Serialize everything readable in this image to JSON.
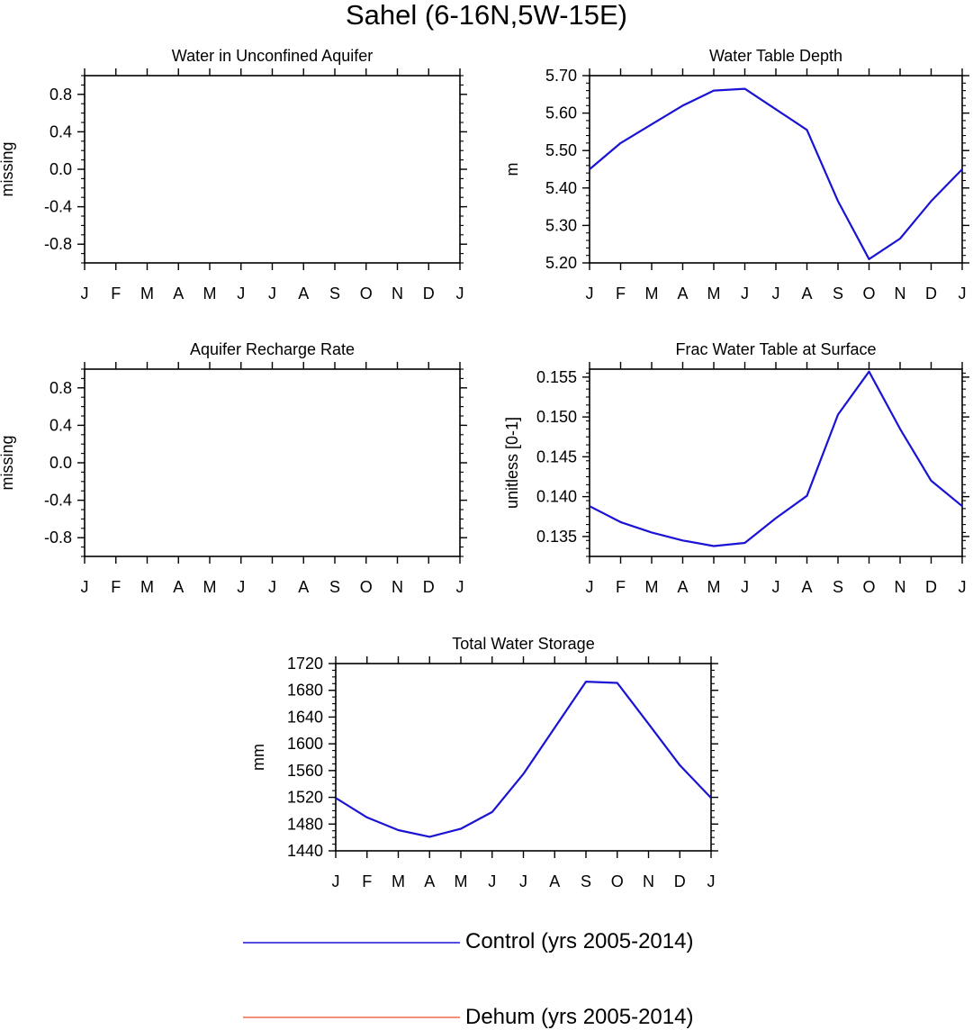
{
  "title": "Sahel (6-16N,5W-15E)",
  "legend": [
    {
      "label": "Control (yrs 2005-2014)",
      "color": "#1a13d3"
    },
    {
      "label": "Dehum (yrs 2005-2014)",
      "color": "#f26b55"
    }
  ],
  "chart_data": [
    {
      "type": "line",
      "title": "Water in Unconfined Aquifer",
      "ylabel": "missing",
      "categories": [
        "J",
        "F",
        "M",
        "A",
        "M",
        "J",
        "J",
        "A",
        "S",
        "O",
        "N",
        "D",
        "J"
      ],
      "ylim": [
        -1.0,
        1.0
      ],
      "yticks": [
        "0.8",
        "0.4",
        "0.0",
        "-0.4",
        "-0.8"
      ],
      "series": []
    },
    {
      "type": "line",
      "title": "Water Table Depth",
      "ylabel": "m",
      "categories": [
        "J",
        "F",
        "M",
        "A",
        "M",
        "J",
        "J",
        "A",
        "S",
        "O",
        "N",
        "D",
        "J"
      ],
      "ylim": [
        5.2,
        5.7
      ],
      "yticks": [
        "5.70",
        "5.60",
        "5.50",
        "5.40",
        "5.30",
        "5.20"
      ],
      "series": [
        {
          "name": "Control (yrs 2005-2014)",
          "values": [
            5.45,
            5.52,
            5.57,
            5.62,
            5.66,
            5.665,
            5.61,
            5.555,
            5.365,
            5.21,
            5.265,
            5.365,
            5.45
          ]
        }
      ]
    },
    {
      "type": "line",
      "title": "Aquifer Recharge Rate",
      "ylabel": "missing",
      "categories": [
        "J",
        "F",
        "M",
        "A",
        "M",
        "J",
        "J",
        "A",
        "S",
        "O",
        "N",
        "D",
        "J"
      ],
      "ylim": [
        -1.0,
        1.0
      ],
      "yticks": [
        "0.8",
        "0.4",
        "0.0",
        "-0.4",
        "-0.8"
      ],
      "series": []
    },
    {
      "type": "line",
      "title": "Frac Water Table at Surface",
      "ylabel": "unitless [0-1]",
      "categories": [
        "J",
        "F",
        "M",
        "A",
        "M",
        "J",
        "J",
        "A",
        "S",
        "O",
        "N",
        "D",
        "J"
      ],
      "ylim": [
        0.1325,
        0.156
      ],
      "yticks": [
        "0.155",
        "0.150",
        "0.145",
        "0.140",
        "0.135"
      ],
      "series": [
        {
          "name": "Control (yrs 2005-2014)",
          "values": [
            0.1388,
            0.1368,
            0.1355,
            0.1345,
            0.1338,
            0.1342,
            0.1373,
            0.1401,
            0.1503,
            0.1557,
            0.1485,
            0.142,
            0.1388
          ]
        }
      ]
    },
    {
      "type": "line",
      "title": "Total Water Storage",
      "ylabel": "mm",
      "categories": [
        "J",
        "F",
        "M",
        "A",
        "M",
        "J",
        "J",
        "A",
        "S",
        "O",
        "N",
        "D",
        "J"
      ],
      "ylim": [
        1440,
        1720
      ],
      "yticks": [
        "1720",
        "1680",
        "1640",
        "1600",
        "1560",
        "1520",
        "1480",
        "1440"
      ],
      "series": [
        {
          "name": "Control (yrs 2005-2014)",
          "values": [
            1519,
            1490,
            1471,
            1461,
            1473,
            1498,
            1555,
            1624,
            1693,
            1691,
            1630,
            1568,
            1519
          ]
        }
      ]
    }
  ]
}
